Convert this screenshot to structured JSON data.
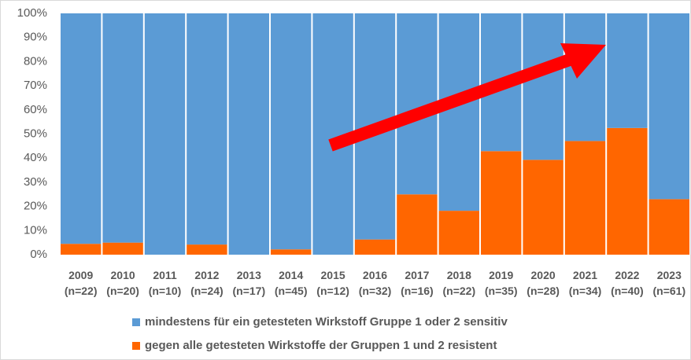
{
  "chart_data": {
    "type": "stacked_bar",
    "categories": [
      "2009\n(n=22)",
      "2010\n(n=20)",
      "2011\n(n=10)",
      "2012\n(n=24)",
      "2013\n(n=17)",
      "2014\n(n=45)",
      "2015\n(n=12)",
      "2016\n(n=32)",
      "2017\n(n=16)",
      "2018\n(n=22)",
      "2019\n(n=35)",
      "2020\n(n=28)",
      "2021\n(n=34)",
      "2022\n(n=40)",
      "2023\n(n=61)"
    ],
    "series": [
      {
        "name": "gegen alle getesteten Wirkstoffe der Gruppen 1 und 2 resistent",
        "color": "#ff6600",
        "values": [
          4.5,
          5,
          0,
          4.2,
          0,
          2.2,
          0,
          6.3,
          25,
          18.2,
          42.9,
          39.3,
          47.1,
          52.5,
          23
        ]
      },
      {
        "name": "mindestens für ein getesteten Wirkstoff Gruppe 1 oder 2 sensitiv",
        "color": "#5b9bd5",
        "values": [
          95.5,
          95,
          100,
          95.8,
          100,
          97.8,
          100,
          93.7,
          75,
          81.8,
          57.1,
          60.7,
          52.9,
          47.5,
          77
        ]
      }
    ],
    "legend_order": [
      1,
      0
    ],
    "ylim": [
      0,
      100
    ],
    "yticks": [
      {
        "value": 0,
        "label": "0%"
      },
      {
        "value": 10,
        "label": "10%"
      },
      {
        "value": 20,
        "label": "20%"
      },
      {
        "value": 30,
        "label": "30%"
      },
      {
        "value": 40,
        "label": "40%"
      },
      {
        "value": 50,
        "label": "50%"
      },
      {
        "value": 60,
        "label": "60%"
      },
      {
        "value": 70,
        "label": "70%"
      },
      {
        "value": 80,
        "label": "80%"
      },
      {
        "value": 90,
        "label": "90%"
      },
      {
        "value": 100,
        "label": "100%"
      }
    ]
  }
}
